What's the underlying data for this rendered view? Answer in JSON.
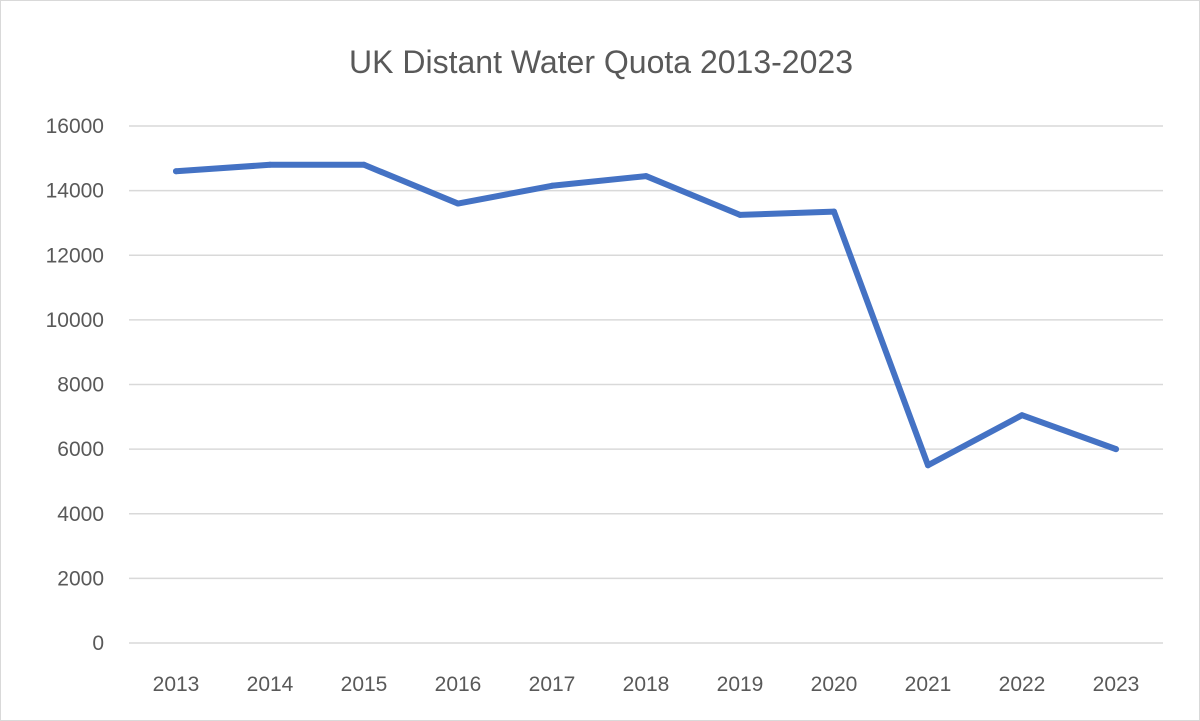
{
  "chart_data": {
    "type": "line",
    "title": "UK Distant Water Quota 2013-2023",
    "xlabel": "",
    "ylabel": "",
    "categories": [
      "2013",
      "2014",
      "2015",
      "2016",
      "2017",
      "2018",
      "2019",
      "2020",
      "2021",
      "2022",
      "2023"
    ],
    "series": [
      {
        "values": [
          14600,
          14800,
          14800,
          13600,
          14150,
          14450,
          13250,
          13350,
          5500,
          7050,
          6000
        ],
        "color": "#4472c4"
      }
    ],
    "ylim": [
      0,
      16000
    ],
    "yticks": [
      0,
      2000,
      4000,
      6000,
      8000,
      10000,
      12000,
      14000,
      16000
    ],
    "grid": true,
    "legend": "none"
  }
}
